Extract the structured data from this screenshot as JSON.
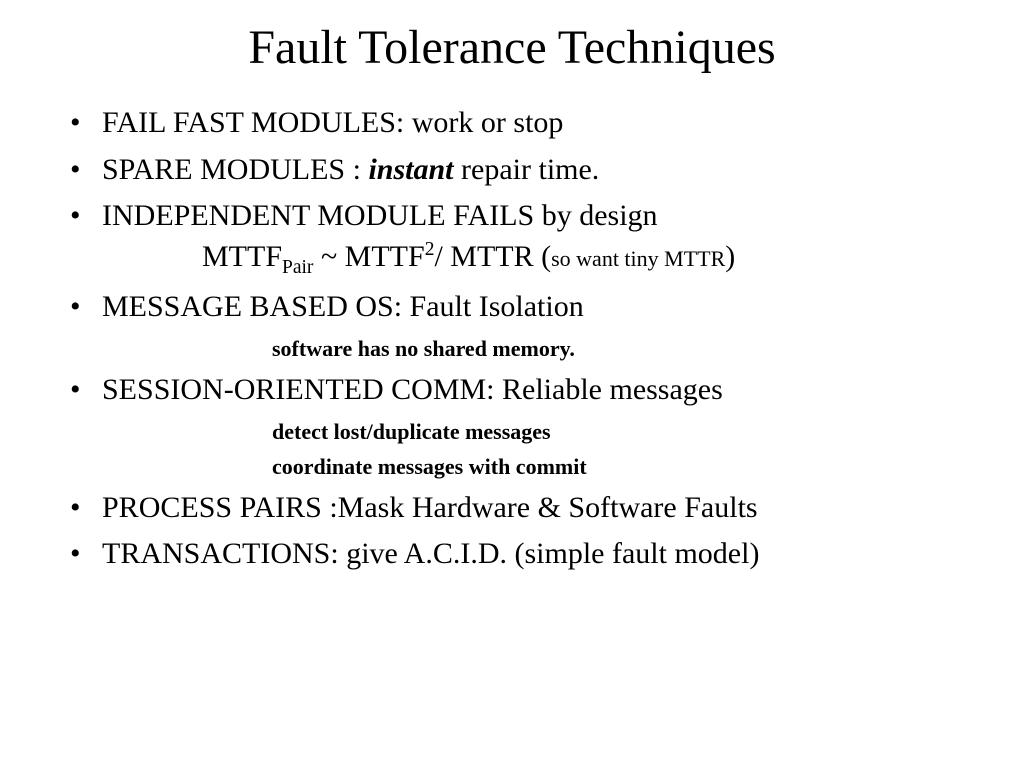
{
  "title": "Fault Tolerance Techniques",
  "bullets": {
    "b1": "FAIL FAST MODULES: work or stop",
    "b2_pre": "SPARE MODULES :   ",
    "b2_em": "instant",
    "b2_post": "  repair time.",
    "b3_line1": "INDEPENDENT MODULE FAILS by design",
    "b3_line2_a": "MTTF",
    "b3_line2_sub": "Pair",
    "b3_line2_b": " ~ MTTF",
    "b3_line2_sup": "2",
    "b3_line2_c": "/ MTTR (",
    "b3_line2_small": "so want tiny MTTR",
    "b3_line2_d": ")",
    "b4": "MESSAGE BASED OS: Fault Isolation",
    "b4_sub": "software has no shared memory.",
    "b5": "SESSION-ORIENTED COMM: Reliable messages",
    "b5_sub1": "detect lost/duplicate messages",
    "b5_sub2": "coordinate messages with commit",
    "b6": "PROCESS PAIRS :Mask Hardware & Software Faults",
    "b7": "TRANSACTIONS:  give A.C.I.D. (simple fault model)"
  },
  "style": {
    "background": "#ffffff",
    "text_color": "#000000",
    "title_fontsize": 48,
    "bullet_fontsize": 30,
    "sub_fontsize": 22,
    "font_family": "Times New Roman"
  }
}
